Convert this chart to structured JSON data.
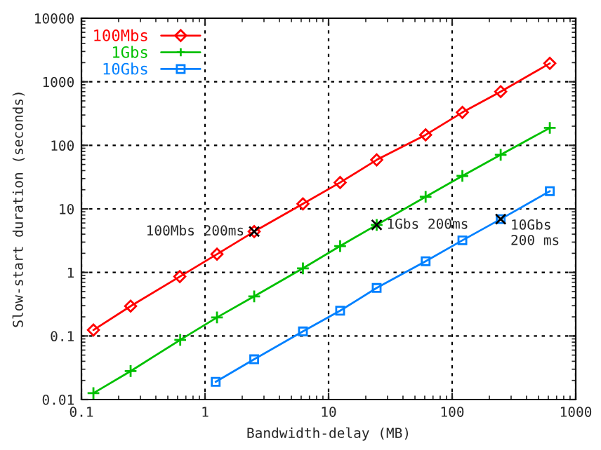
{
  "chart_data": {
    "type": "line",
    "xlabel": "Bandwidth-delay (MB)",
    "ylabel": "Slow-start duration (seconds)",
    "log": "xy",
    "xlim": [
      0.1,
      1000
    ],
    "ylim": [
      0.01,
      10000
    ],
    "xticks": [
      0.1,
      1,
      10,
      100,
      1000
    ],
    "yticks": [
      0.01,
      0.1,
      1,
      10,
      100,
      1000,
      10000
    ],
    "grid": true,
    "legend": "top left",
    "series": [
      {
        "name": "100Mbs",
        "color": "#ff0000",
        "marker": "diamond",
        "x": [
          0.125,
          0.25,
          0.625,
          1.25,
          2.5,
          6.2,
          12.4,
          24.5,
          61,
          121,
          247,
          617
        ],
        "values": [
          0.124,
          0.295,
          0.86,
          1.94,
          4.4,
          12,
          26,
          59,
          146,
          330,
          700,
          1950
        ]
      },
      {
        "name": "1Gbs",
        "color": "#00c000",
        "marker": "cross",
        "x": [
          0.125,
          0.25,
          0.63,
          1.25,
          2.5,
          6.2,
          12.4,
          24.5,
          61,
          121,
          247,
          617
        ],
        "values": [
          0.0126,
          0.028,
          0.087,
          0.196,
          0.42,
          1.16,
          2.6,
          5.6,
          15.5,
          33,
          71,
          188
        ]
      },
      {
        "name": "10Gbs",
        "color": "#0080ff",
        "marker": "square",
        "x": [
          1.22,
          2.5,
          6.2,
          12.4,
          24.5,
          61,
          121,
          247,
          617
        ],
        "values": [
          0.019,
          0.043,
          0.118,
          0.25,
          0.57,
          1.5,
          3.2,
          6.9,
          19
        ]
      }
    ],
    "annotations": [
      {
        "text": "100Mbs 200ms",
        "x": 2.5,
        "y": 4.4
      },
      {
        "text": "1Gbs 200ms",
        "x": 24.5,
        "y": 5.6
      },
      {
        "text": "10Gbs\n200 ms",
        "x": 247,
        "y": 6.9
      }
    ]
  }
}
